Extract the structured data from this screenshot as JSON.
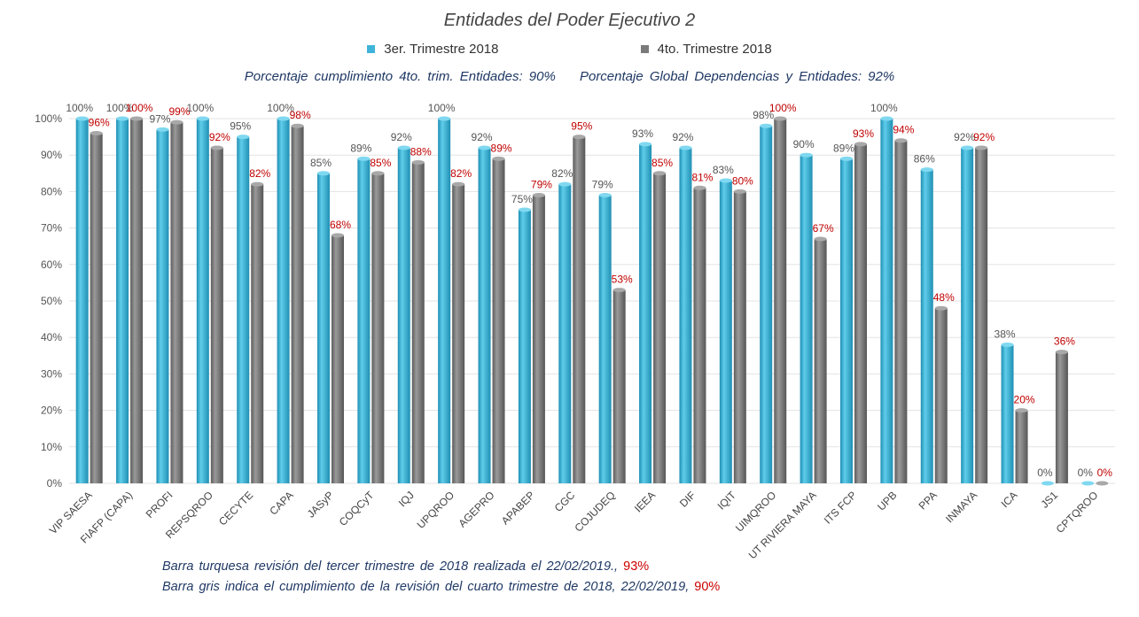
{
  "chart_data": {
    "type": "bar",
    "title": "Entidades del Poder Ejecutivo 2",
    "subtitle_left": "Porcentaje cumplimiento 4to. trim. Entidades: 90%",
    "subtitle_right": "Porcentaje Global Dependencias y Entidades: 92%",
    "categories": [
      "VIP SAESA",
      "FIAFP (CAPA)",
      "PROFI",
      "REPSQROO",
      "CECYTE",
      "CAPA",
      "JASyP",
      "COQCyT",
      "IQJ",
      "UPQROO",
      "AGEPRO",
      "APABEP",
      "CGC",
      "COJUDEQ",
      "IEEA",
      "DIF",
      "IQIT",
      "UIMQROO",
      "UT RIVIERA MAYA",
      "ITS FCP",
      "UPB",
      "PPA",
      "INMAYA",
      "ICA",
      "JS1",
      "CPTQROO"
    ],
    "series": [
      {
        "name": "3er. Trimestre 2018",
        "color": "#3fb4d8",
        "values": [
          100,
          100,
          97,
          100,
          95,
          100,
          85,
          89,
          92,
          100,
          92,
          75,
          82,
          79,
          93,
          92,
          83,
          98,
          90,
          89,
          100,
          86,
          92,
          38,
          0,
          0
        ]
      },
      {
        "name": "4to. Trimestre 2018",
        "color": "#7a7a7a",
        "values": [
          96,
          100,
          99,
          92,
          82,
          98,
          68,
          85,
          88,
          82,
          89,
          79,
          95,
          53,
          85,
          81,
          80,
          100,
          67,
          93,
          94,
          48,
          92,
          20,
          36,
          0
        ]
      }
    ],
    "yticks": [
      "0%",
      "10%",
      "20%",
      "30%",
      "40%",
      "50%",
      "60%",
      "70%",
      "80%",
      "90%",
      "100%"
    ],
    "ylim": [
      0,
      100
    ],
    "grid": true,
    "legend_position": "top-center",
    "label_colors": {
      "series1": "#555555",
      "series2": "#c00000"
    }
  },
  "notes": {
    "line1_text": "Barra turquesa revisión del tercer trimestre de 2018 realizada el 22/02/2019.,",
    "line1_value": "93%",
    "line2_text": "Barra gris indica el cumplimiento de la revisión del cuarto trimestre de 2018, 22/02/2019,",
    "line2_value": "90%"
  }
}
